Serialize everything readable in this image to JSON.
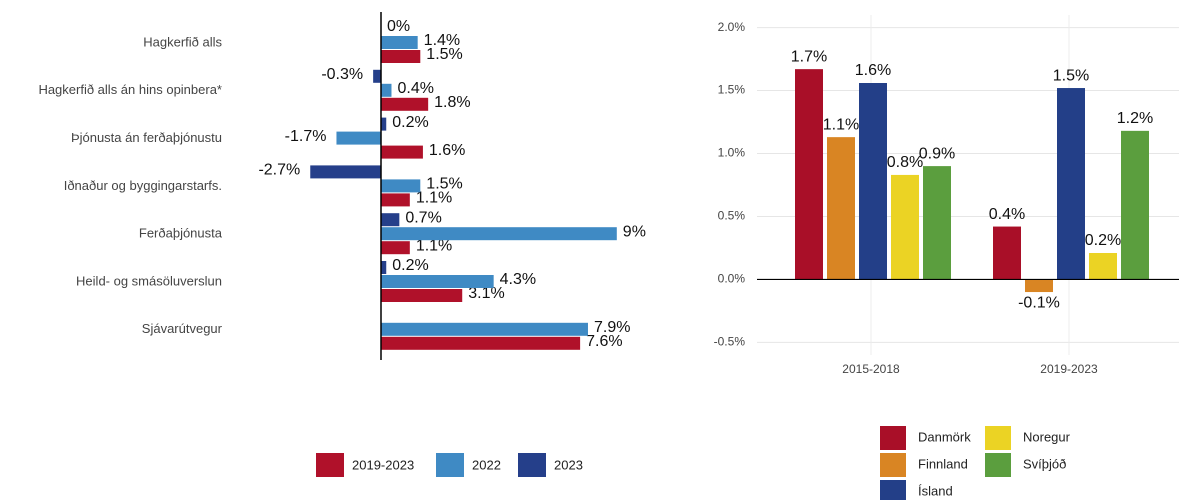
{
  "chart_data": [
    {
      "type": "hbar",
      "categories": [
        "Hagkerfið alls",
        "Hagkerfið alls án hins opinbera*",
        "Þjónusta án ferðaþjónustu",
        "Iðnaður og byggingarstarfs.",
        "Ferðaþjónusta",
        "Heild- og smásöluverslun",
        "Sjávarútvegur"
      ],
      "xlim": [
        -3,
        9.5
      ],
      "series": [
        {
          "name": "2019-2023",
          "color": "#b0112a",
          "values": [
            1.5,
            1.8,
            1.6,
            1.1,
            1.1,
            3.1,
            7.6
          ],
          "value_labels": [
            "1.5%",
            "1.8%",
            "1.6%",
            "1.1%",
            "1.1%",
            "3.1%",
            "7.6%"
          ]
        },
        {
          "name": "2022",
          "color": "#3f8ac4",
          "values": [
            1.4,
            0.4,
            -1.7,
            1.5,
            9,
            4.3,
            7.9
          ],
          "value_labels": [
            "1.4%",
            "0.4%",
            "-1.7%",
            "1.5%",
            "9%",
            "4.3%",
            "7.9%"
          ]
        },
        {
          "name": "2023",
          "color": "#253f8a",
          "values": [
            0,
            -0.3,
            0.2,
            -2.7,
            0.7,
            0.2,
            null
          ],
          "value_labels": [
            "0%",
            "-0.3%",
            "0.2%",
            "-2.7%",
            "0.7%",
            "0.2%",
            null
          ]
        }
      ]
    },
    {
      "type": "bar",
      "categories": [
        "2015-2018",
        "2019-2023"
      ],
      "ylim": [
        -0.6,
        2.1
      ],
      "yticks": [
        {
          "value": -0.5,
          "label": "-0.5%"
        },
        {
          "value": 0,
          "label": "0.0%"
        },
        {
          "value": 0.5,
          "label": "0.5%"
        },
        {
          "value": 1,
          "label": "1.0%"
        },
        {
          "value": 1.5,
          "label": "1.5%"
        },
        {
          "value": 2,
          "label": "2.0%"
        }
      ],
      "grid": true,
      "series": [
        {
          "name": "Danmörk",
          "color": "#a90f28",
          "values": [
            1.67,
            0.42
          ],
          "value_labels": [
            "1.7%",
            "0.4%"
          ]
        },
        {
          "name": "Finnland",
          "color": "#d98523",
          "values": [
            1.13,
            -0.1
          ],
          "value_labels": [
            "1.1%",
            "-0.1%"
          ]
        },
        {
          "name": "Ísland",
          "color": "#233f88",
          "values": [
            1.56,
            1.52
          ],
          "value_labels": [
            "1.6%",
            "1.5%"
          ]
        },
        {
          "name": "Noregur",
          "color": "#ebd324",
          "values": [
            0.83,
            0.21
          ],
          "value_labels": [
            "0.8%",
            "0.2%"
          ]
        },
        {
          "name": "Svíþjóð",
          "color": "#5b9e3e",
          "values": [
            0.9,
            1.18
          ],
          "value_labels": [
            "0.9%",
            "1.2%"
          ]
        }
      ]
    }
  ]
}
